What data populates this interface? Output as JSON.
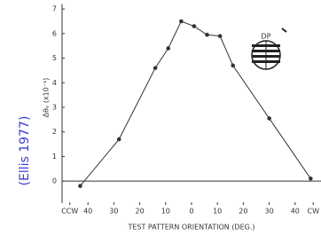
{
  "chart_data": {
    "type": "line",
    "y_label": "Δθₑ (x10⁻¹)",
    "x_label": "TEST PATTERN ORIENTATION (DEG.)",
    "annotations": [
      "(Ellis 1977)",
      "DP"
    ],
    "x": [
      -43,
      -28,
      -14,
      -9,
      -4,
      1,
      6,
      11,
      16,
      30,
      46
    ],
    "series": [
      {
        "color": "#333333",
        "values": [
          -0.2,
          1.7,
          4.6,
          5.4,
          6.5,
          6.3,
          5.95,
          5.9,
          4.7,
          2.55,
          0.1
        ]
      }
    ],
    "xlim": [
      -50,
      50
    ],
    "xticks": [
      {
        "value": -47,
        "label": "CCW"
      },
      {
        "value": -40,
        "label": "40"
      },
      {
        "value": -30,
        "label": "30"
      },
      {
        "value": -20,
        "label": "20"
      },
      {
        "value": -10,
        "label": "10"
      },
      0,
      10,
      20,
      30,
      40,
      {
        "value": 47,
        "label": "CW"
      }
    ],
    "ylim": [
      -0.9,
      7.2
    ],
    "yticks": [
      0,
      1,
      2,
      3,
      4,
      5,
      6,
      7
    ]
  }
}
